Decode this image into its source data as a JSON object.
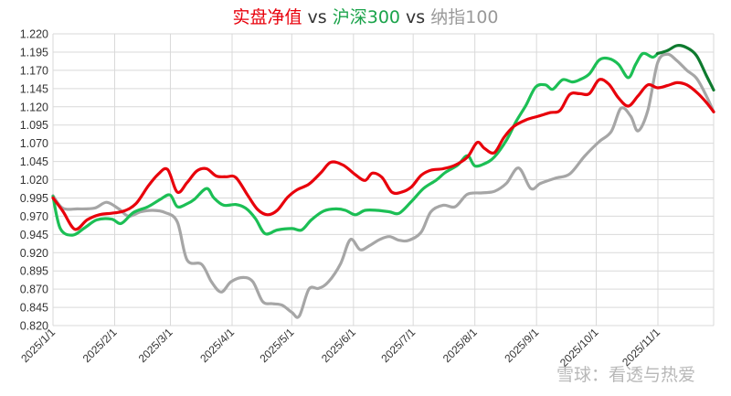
{
  "chart_data": {
    "type": "line",
    "title_parts": [
      {
        "text": "实盘净值",
        "color": "#e8000b"
      },
      {
        "text": " vs ",
        "color": "#333333"
      },
      {
        "text": "沪深300",
        "color": "#1aa34a"
      },
      {
        "text": " vs ",
        "color": "#333333"
      },
      {
        "text": "纳指100",
        "color": "#999999"
      }
    ],
    "x_ticks": [
      "2025/1/1",
      "2025/2/1",
      "2025/3/1",
      "2025/4/1",
      "2025/5/1",
      "2025/6/1",
      "2025/7/1",
      "2025/8/1",
      "2025/9/1",
      "2025/10/1",
      "2025/11/1"
    ],
    "ylim": [
      0.82,
      1.22
    ],
    "y_ticks": [
      "0.820",
      "0.845",
      "0.870",
      "0.895",
      "0.920",
      "0.945",
      "0.970",
      "0.995",
      "1.020",
      "1.045",
      "1.070",
      "1.095",
      "1.120",
      "1.145",
      "1.170",
      "1.195",
      "1.220"
    ],
    "grid": true,
    "series": [
      {
        "name": "纳指100",
        "color": "#a6a6a6",
        "points": [
          [
            0,
            0.998
          ],
          [
            4,
            0.981
          ],
          [
            10,
            0.98
          ],
          [
            17,
            0.981
          ],
          [
            22,
            0.989
          ],
          [
            27,
            0.98
          ],
          [
            31,
            0.97
          ],
          [
            36,
            0.976
          ],
          [
            41,
            0.978
          ],
          [
            46,
            0.975
          ],
          [
            51,
            0.962
          ],
          [
            55,
            0.91
          ],
          [
            61,
            0.904
          ],
          [
            65,
            0.88
          ],
          [
            69,
            0.866
          ],
          [
            73,
            0.88
          ],
          [
            78,
            0.886
          ],
          [
            82,
            0.88
          ],
          [
            86,
            0.853
          ],
          [
            90,
            0.85
          ],
          [
            94,
            0.848
          ],
          [
            98,
            0.838
          ],
          [
            101,
            0.833
          ],
          [
            105,
            0.87
          ],
          [
            109,
            0.871
          ],
          [
            113,
            0.88
          ],
          [
            118,
            0.905
          ],
          [
            122,
            0.938
          ],
          [
            126,
            0.924
          ],
          [
            130,
            0.93
          ],
          [
            134,
            0.938
          ],
          [
            138,
            0.942
          ],
          [
            142,
            0.937
          ],
          [
            146,
            0.937
          ],
          [
            151,
            0.948
          ],
          [
            155,
            0.976
          ],
          [
            160,
            0.985
          ],
          [
            165,
            0.983
          ],
          [
            170,
            1.0
          ],
          [
            176,
            1.002
          ],
          [
            181,
            1.004
          ],
          [
            186,
            1.015
          ],
          [
            191,
            1.036
          ],
          [
            196,
            1.008
          ],
          [
            200,
            1.015
          ],
          [
            206,
            1.022
          ],
          [
            212,
            1.028
          ],
          [
            218,
            1.052
          ],
          [
            224,
            1.072
          ],
          [
            229,
            1.086
          ],
          [
            233,
            1.118
          ],
          [
            237,
            1.107
          ],
          [
            240,
            1.087
          ],
          [
            244,
            1.115
          ],
          [
            248,
            1.18
          ],
          [
            252,
            1.192
          ],
          [
            256,
            1.183
          ],
          [
            260,
            1.17
          ],
          [
            264,
            1.159
          ],
          [
            268,
            1.135
          ],
          [
            271,
            1.113
          ]
        ]
      },
      {
        "name": "沪深300",
        "color": "#1cbf55",
        "points": [
          [
            0,
            0.997
          ],
          [
            3,
            0.953
          ],
          [
            8,
            0.944
          ],
          [
            13,
            0.954
          ],
          [
            18,
            0.965
          ],
          [
            24,
            0.966
          ],
          [
            28,
            0.96
          ],
          [
            33,
            0.975
          ],
          [
            39,
            0.983
          ],
          [
            44,
            0.993
          ],
          [
            48,
            0.999
          ],
          [
            51,
            0.983
          ],
          [
            55,
            0.987
          ],
          [
            58,
            0.993
          ],
          [
            63,
            1.008
          ],
          [
            66,
            0.995
          ],
          [
            70,
            0.985
          ],
          [
            75,
            0.986
          ],
          [
            79,
            0.981
          ],
          [
            83,
            0.967
          ],
          [
            87,
            0.946
          ],
          [
            92,
            0.951
          ],
          [
            98,
            0.953
          ],
          [
            102,
            0.951
          ],
          [
            106,
            0.965
          ],
          [
            111,
            0.977
          ],
          [
            116,
            0.98
          ],
          [
            120,
            0.978
          ],
          [
            124,
            0.972
          ],
          [
            128,
            0.978
          ],
          [
            133,
            0.978
          ],
          [
            138,
            0.976
          ],
          [
            142,
            0.974
          ],
          [
            147,
            0.99
          ],
          [
            152,
            1.008
          ],
          [
            157,
            1.019
          ],
          [
            161,
            1.03
          ],
          [
            166,
            1.04
          ],
          [
            170,
            1.053
          ],
          [
            173,
            1.039
          ],
          [
            177,
            1.042
          ],
          [
            181,
            1.051
          ],
          [
            186,
            1.074
          ],
          [
            190,
            1.1
          ],
          [
            194,
            1.122
          ],
          [
            198,
            1.147
          ],
          [
            202,
            1.15
          ],
          [
            205,
            1.144
          ],
          [
            209,
            1.157
          ],
          [
            213,
            1.154
          ],
          [
            216,
            1.157
          ],
          [
            220,
            1.165
          ],
          [
            224,
            1.184
          ],
          [
            228,
            1.186
          ],
          [
            232,
            1.178
          ],
          [
            236,
            1.16
          ],
          [
            239,
            1.178
          ],
          [
            242,
            1.193
          ],
          [
            246,
            1.188
          ],
          [
            248,
            1.193
          ]
        ]
      },
      {
        "name": "沪深300 (11月)",
        "color": "#0e7a2e",
        "points": [
          [
            248,
            1.193
          ],
          [
            252,
            1.197
          ],
          [
            256,
            1.204
          ],
          [
            260,
            1.201
          ],
          [
            264,
            1.19
          ],
          [
            268,
            1.163
          ],
          [
            271,
            1.143
          ]
        ]
      },
      {
        "name": "实盘净值",
        "color": "#e8000b",
        "points": [
          [
            0,
            0.995
          ],
          [
            4,
            0.977
          ],
          [
            9,
            0.952
          ],
          [
            14,
            0.965
          ],
          [
            19,
            0.972
          ],
          [
            24,
            0.974
          ],
          [
            29,
            0.977
          ],
          [
            34,
            0.987
          ],
          [
            39,
            1.011
          ],
          [
            43,
            1.027
          ],
          [
            47,
            1.034
          ],
          [
            51,
            1.003
          ],
          [
            55,
            1.016
          ],
          [
            59,
            1.032
          ],
          [
            63,
            1.035
          ],
          [
            67,
            1.025
          ],
          [
            71,
            1.024
          ],
          [
            75,
            1.023
          ],
          [
            80,
            0.998
          ],
          [
            84,
            0.979
          ],
          [
            88,
            0.972
          ],
          [
            92,
            0.978
          ],
          [
            96,
            0.995
          ],
          [
            100,
            1.006
          ],
          [
            105,
            1.014
          ],
          [
            110,
            1.03
          ],
          [
            114,
            1.044
          ],
          [
            119,
            1.04
          ],
          [
            124,
            1.027
          ],
          [
            128,
            1.019
          ],
          [
            131,
            1.029
          ],
          [
            135,
            1.023
          ],
          [
            139,
            1.003
          ],
          [
            143,
            1.003
          ],
          [
            147,
            1.01
          ],
          [
            151,
            1.026
          ],
          [
            155,
            1.033
          ],
          [
            160,
            1.035
          ],
          [
            165,
            1.04
          ],
          [
            170,
            1.051
          ],
          [
            174,
            1.071
          ],
          [
            177,
            1.063
          ],
          [
            181,
            1.057
          ],
          [
            185,
            1.078
          ],
          [
            189,
            1.093
          ],
          [
            194,
            1.102
          ],
          [
            199,
            1.107
          ],
          [
            204,
            1.112
          ],
          [
            208,
            1.115
          ],
          [
            212,
            1.137
          ],
          [
            216,
            1.138
          ],
          [
            220,
            1.138
          ],
          [
            224,
            1.157
          ],
          [
            228,
            1.151
          ],
          [
            232,
            1.132
          ],
          [
            236,
            1.121
          ],
          [
            240,
            1.135
          ],
          [
            244,
            1.15
          ],
          [
            248,
            1.146
          ],
          [
            252,
            1.149
          ],
          [
            256,
            1.153
          ],
          [
            260,
            1.15
          ],
          [
            264,
            1.14
          ],
          [
            268,
            1.126
          ],
          [
            271,
            1.113
          ]
        ]
      }
    ]
  },
  "watermark": "雪球：看透与热爱"
}
